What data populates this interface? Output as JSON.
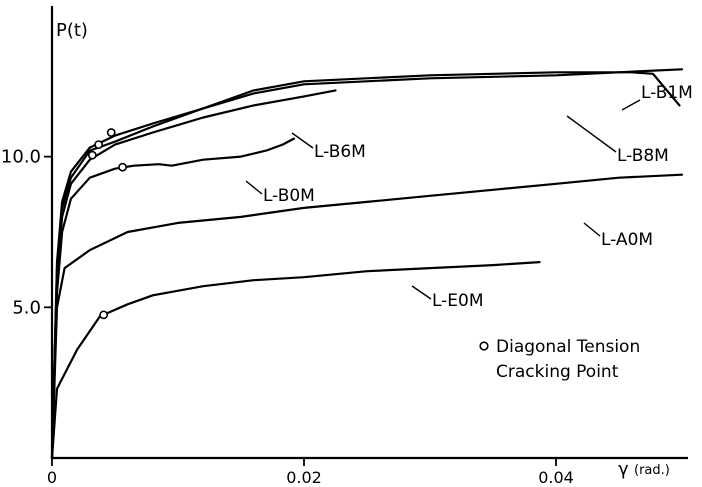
{
  "chart_data": {
    "type": "line",
    "ylabel": "P(t)",
    "xlabel": "γ",
    "xunit": "(rad.)",
    "xlim": [
      0,
      0.05
    ],
    "ylim": [
      0,
      14.8
    ],
    "xticks": [
      {
        "value": 0,
        "label": "0"
      },
      {
        "value": 0.02,
        "label": "0.02"
      },
      {
        "value": 0.04,
        "label": "0.04"
      }
    ],
    "yticks": [
      {
        "value": 5.0,
        "label": "5.0"
      },
      {
        "value": 10.0,
        "label": "10.0"
      }
    ],
    "legend": {
      "marker": "o",
      "lines": [
        "Diagonal Tension",
        "Cracking Point"
      ],
      "placement": "lower-right"
    },
    "series": [
      {
        "name": "L-B1M",
        "points": [
          [
            0,
            0
          ],
          [
            0.0004,
            6.5
          ],
          [
            0.0008,
            8.5
          ],
          [
            0.0015,
            9.5
          ],
          [
            0.003,
            10.3
          ],
          [
            0.005,
            10.7
          ],
          [
            0.008,
            11.1
          ],
          [
            0.012,
            11.6
          ],
          [
            0.016,
            12.1
          ],
          [
            0.02,
            12.4
          ],
          [
            0.03,
            12.6
          ],
          [
            0.04,
            12.7
          ],
          [
            0.045,
            12.8
          ],
          [
            0.05,
            12.9
          ]
        ],
        "cracks": [
          [
            0.0047,
            10.8
          ]
        ]
      },
      {
        "name": "L-B8M",
        "points": [
          [
            0,
            0
          ],
          [
            0.0004,
            6.3
          ],
          [
            0.0008,
            8.3
          ],
          [
            0.0015,
            9.3
          ],
          [
            0.003,
            10.2
          ],
          [
            0.005,
            10.5
          ],
          [
            0.008,
            11.0
          ],
          [
            0.012,
            11.6
          ],
          [
            0.016,
            12.2
          ],
          [
            0.02,
            12.5
          ],
          [
            0.03,
            12.7
          ],
          [
            0.04,
            12.8
          ],
          [
            0.046,
            12.8
          ],
          [
            0.0477,
            12.75
          ],
          [
            0.0498,
            11.7
          ]
        ],
        "cracks": [
          [
            0.0037,
            10.4
          ]
        ]
      },
      {
        "name": "L-B6M",
        "points": [
          [
            0,
            0
          ],
          [
            0.0004,
            6.0
          ],
          [
            0.0008,
            8.0
          ],
          [
            0.0015,
            9.1
          ],
          [
            0.003,
            9.9
          ],
          [
            0.005,
            10.4
          ],
          [
            0.008,
            10.8
          ],
          [
            0.012,
            11.3
          ],
          [
            0.016,
            11.7
          ],
          [
            0.02,
            12.0
          ],
          [
            0.0225,
            12.2
          ]
        ],
        "cracks": [
          [
            0.0032,
            10.05
          ]
        ]
      },
      {
        "name": "L-B0M",
        "points": [
          [
            0,
            0
          ],
          [
            0.0004,
            5.5
          ],
          [
            0.0008,
            7.5
          ],
          [
            0.0015,
            8.6
          ],
          [
            0.003,
            9.3
          ],
          [
            0.005,
            9.6
          ],
          [
            0.0065,
            9.7
          ],
          [
            0.0085,
            9.75
          ],
          [
            0.0095,
            9.7
          ],
          [
            0.012,
            9.9
          ],
          [
            0.015,
            10.0
          ],
          [
            0.017,
            10.2
          ],
          [
            0.0183,
            10.4
          ],
          [
            0.0192,
            10.6
          ]
        ],
        "cracks": [
          [
            0.0056,
            9.65
          ]
        ]
      },
      {
        "name": "L-A0M",
        "points": [
          [
            0,
            0
          ],
          [
            0.0004,
            5.0
          ],
          [
            0.001,
            6.3
          ],
          [
            0.003,
            6.9
          ],
          [
            0.006,
            7.5
          ],
          [
            0.01,
            7.8
          ],
          [
            0.015,
            8.0
          ],
          [
            0.02,
            8.3
          ],
          [
            0.025,
            8.5
          ],
          [
            0.03,
            8.7
          ],
          [
            0.035,
            8.9
          ],
          [
            0.04,
            9.1
          ],
          [
            0.045,
            9.3
          ],
          [
            0.05,
            9.4
          ]
        ],
        "cracks": []
      },
      {
        "name": "L-E0M",
        "points": [
          [
            0,
            0
          ],
          [
            0.0004,
            2.3
          ],
          [
            0.002,
            3.6
          ],
          [
            0.0038,
            4.7
          ],
          [
            0.006,
            5.1
          ],
          [
            0.008,
            5.4
          ],
          [
            0.012,
            5.7
          ],
          [
            0.016,
            5.9
          ],
          [
            0.02,
            6.0
          ],
          [
            0.025,
            6.2
          ],
          [
            0.03,
            6.3
          ],
          [
            0.035,
            6.4
          ],
          [
            0.0387,
            6.5
          ]
        ],
        "cracks": [
          [
            0.0041,
            4.75
          ]
        ]
      }
    ]
  }
}
